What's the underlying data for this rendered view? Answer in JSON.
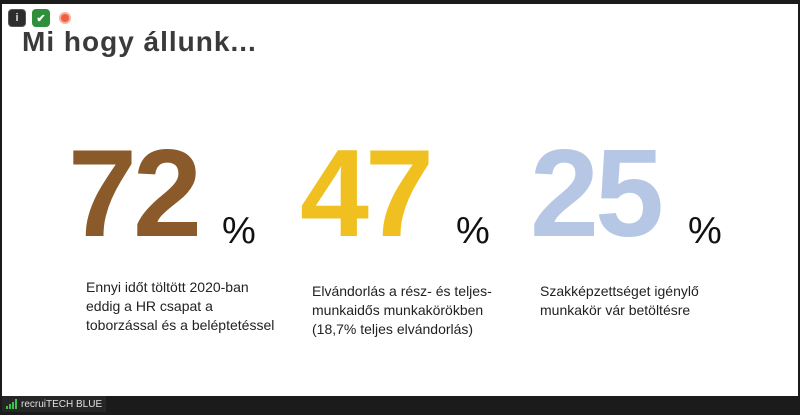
{
  "slide": {
    "title": "Mi hogy állunk..."
  },
  "stats": [
    {
      "value": "72",
      "unit": "%",
      "description": "Ennyi időt töltött 2020-ban eddig a HR csapat a toborzással és a beléptetéssel",
      "color": "#8a5a2a"
    },
    {
      "value": "47",
      "unit": "%",
      "description": "Elvándorlás a rész- és teljes-munkaidős munkakörökben (18,7% teljes elvándorlás)",
      "color": "#f0c020"
    },
    {
      "value": "25",
      "unit": "%",
      "description": "Szakképzettséget igénylő munkakör vár betöltésre",
      "color": "#b6c7e6"
    }
  ],
  "window": {
    "participant_name": "recruiTECH BLUE",
    "icons": [
      "info-icon",
      "shield-check-icon",
      "recording-icon"
    ]
  }
}
